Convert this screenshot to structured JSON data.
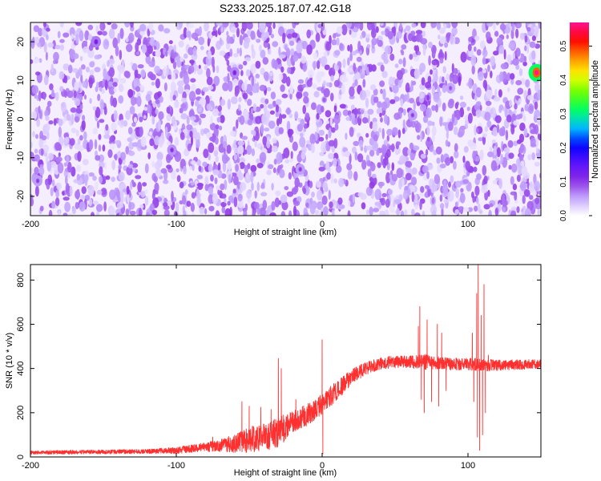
{
  "title": "S233.2025.187.07.42.G18",
  "chart_data": [
    {
      "type": "heatmap",
      "xlabel": "Height of straight line (km)",
      "ylabel": "Frequency (Hz)",
      "xlim": [
        -200,
        150
      ],
      "ylim": [
        -25,
        25
      ],
      "xticks": [
        -200,
        -100,
        0,
        100
      ],
      "yticks": [
        -20,
        -10,
        0,
        10,
        20
      ],
      "colorbar": {
        "label": "Normalized spectral amplitude",
        "range": [
          0.0,
          0.57
        ],
        "ticks": [
          0.0,
          0.1,
          0.2,
          0.3,
          0.4,
          0.5
        ],
        "tick_labels": [
          "0.0",
          "0.1",
          "0.2",
          "0.3",
          "0.4",
          "0.5"
        ],
        "colors": [
          "#ffffff",
          "#c4a8ff",
          "#8a2be2",
          "#5a12ff",
          "#0000ff",
          "#00bfff",
          "#00ff66",
          "#66ff00",
          "#ffff00",
          "#ff8c00",
          "#ff0000",
          "#ff1493"
        ]
      },
      "field": {
        "background_level": 0.07,
        "peaks": [
          {
            "x": 147,
            "y": 12,
            "value": 0.57
          },
          {
            "x": -155,
            "y": 20,
            "value": 0.13
          },
          {
            "x": -60,
            "y": 12,
            "value": 0.12
          },
          {
            "x": -103,
            "y": -8,
            "value": 0.11
          },
          {
            "x": -15,
            "y": -13,
            "value": 0.1
          },
          {
            "x": 62,
            "y": 1,
            "value": 0.1
          },
          {
            "x": -195,
            "y": -16,
            "value": 0.1
          },
          {
            "x": 88,
            "y": 8,
            "value": 0.09
          }
        ]
      }
    },
    {
      "type": "line",
      "xlabel": "Height of straight line (km)",
      "ylabel": "SNR (10 * v/v)",
      "xlim": [
        -200,
        150
      ],
      "ylim": [
        0,
        870
      ],
      "xticks": [
        -200,
        -100,
        0,
        100
      ],
      "yticks": [
        0,
        200,
        400,
        600,
        800
      ],
      "line_color": "#ff3030",
      "envelope": {
        "x": [
          -200,
          -120,
          -100,
          -80,
          -60,
          -50,
          -40,
          -30,
          -20,
          -10,
          0,
          10,
          20,
          30,
          40,
          50,
          60,
          70,
          80,
          90,
          100,
          110,
          120,
          150
        ],
        "y": [
          20,
          25,
          30,
          45,
          60,
          80,
          90,
          110,
          160,
          190,
          240,
          300,
          360,
          400,
          425,
          430,
          430,
          430,
          425,
          420,
          420,
          415,
          415,
          420
        ],
        "noise": [
          8,
          10,
          15,
          20,
          40,
          60,
          60,
          70,
          50,
          50,
          50,
          45,
          35,
          30,
          28,
          28,
          30,
          35,
          30,
          28,
          30,
          28,
          25,
          20
        ]
      },
      "spikes": [
        {
          "x": -75,
          "y": 90
        },
        {
          "x": -55,
          "y": 250
        },
        {
          "x": -50,
          "y": 230
        },
        {
          "x": -42,
          "y": 225
        },
        {
          "x": -35,
          "y": 215
        },
        {
          "x": -30,
          "y": 445
        },
        {
          "x": -28,
          "y": 400
        },
        {
          "x": -18,
          "y": 260
        },
        {
          "x": 0,
          "y": 530
        },
        {
          "x": 0.5,
          "y": 15
        },
        {
          "x": 66,
          "y": 590
        },
        {
          "x": 67,
          "y": 680
        },
        {
          "x": 68,
          "y": 260
        },
        {
          "x": 70,
          "y": 200
        },
        {
          "x": 72,
          "y": 620
        },
        {
          "x": 75,
          "y": 250
        },
        {
          "x": 79,
          "y": 600
        },
        {
          "x": 80,
          "y": 230
        },
        {
          "x": 82,
          "y": 560
        },
        {
          "x": 85,
          "y": 300
        },
        {
          "x": 103,
          "y": 560
        },
        {
          "x": 104,
          "y": 250
        },
        {
          "x": 106,
          "y": 740
        },
        {
          "x": 106.5,
          "y": 90
        },
        {
          "x": 107,
          "y": 870
        },
        {
          "x": 108,
          "y": 30
        },
        {
          "x": 109,
          "y": 640
        },
        {
          "x": 110,
          "y": 100
        },
        {
          "x": 111,
          "y": 780
        },
        {
          "x": 112,
          "y": 200
        },
        {
          "x": 114,
          "y": 460
        }
      ]
    }
  ]
}
